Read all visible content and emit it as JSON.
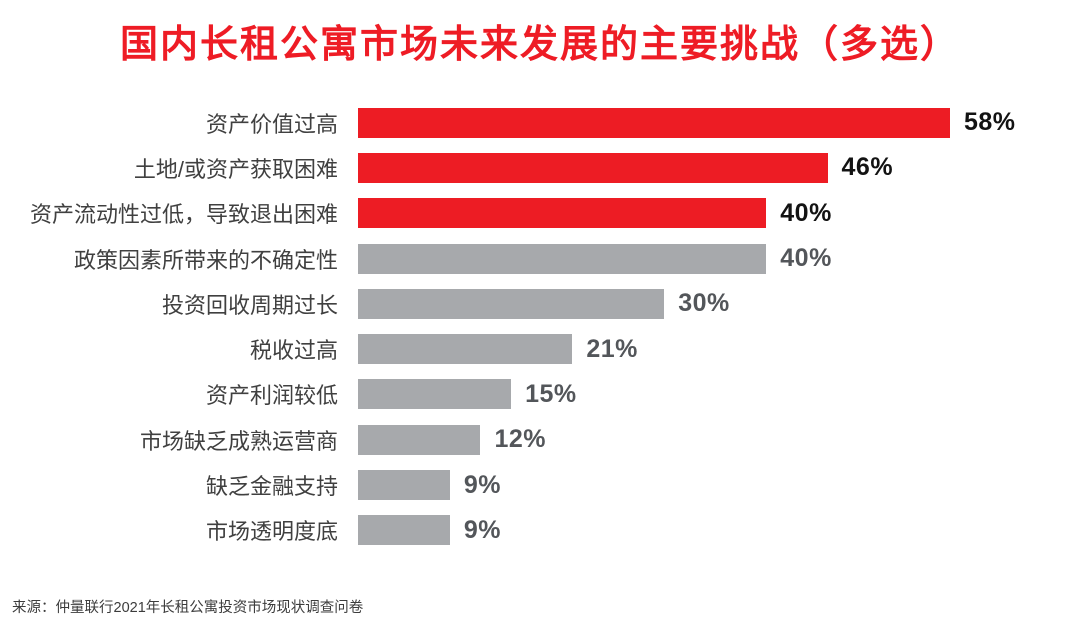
{
  "colors": {
    "title_red": "#ee1c25",
    "bar_red": "#ed1c24",
    "bar_gray": "#a7a9ac",
    "value_black": "#131313",
    "value_gray": "#53565a",
    "category_text": "#404040",
    "source_text": "#3c3c3c",
    "background": "#ffffff"
  },
  "chart_data": {
    "type": "bar",
    "orientation": "horizontal",
    "title": "国内长租公寓市场未来发展的主要挑战（多选）",
    "source": "来源：仲量联行2021年长租公寓投资市场现状调查问卷",
    "categories": [
      "资产价值过高",
      "土地/或资产获取困难",
      "资产流动性过低，导致退出困难",
      "政策因素所带来的不确定性",
      "投资回收周期过长",
      "税收过高",
      "资产利润较低",
      "市场缺乏成熟运营商",
      "缺乏金融支持",
      "市场透明度底"
    ],
    "values": [
      58,
      46,
      40,
      40,
      30,
      21,
      15,
      12,
      9,
      9
    ],
    "value_labels": [
      "58%",
      "46%",
      "40%",
      "40%",
      "30%",
      "21%",
      "15%",
      "12%",
      "9%",
      "9%"
    ],
    "bar_colors": [
      "#ed1c24",
      "#ed1c24",
      "#ed1c24",
      "#a7a9ac",
      "#a7a9ac",
      "#a7a9ac",
      "#a7a9ac",
      "#a7a9ac",
      "#a7a9ac",
      "#a7a9ac"
    ],
    "value_label_colors": [
      "#131313",
      "#131313",
      "#131313",
      "#53565a",
      "#53565a",
      "#53565a",
      "#53565a",
      "#53565a",
      "#53565a",
      "#53565a"
    ],
    "xlim": [
      0,
      65
    ],
    "grid": false,
    "legend": false,
    "axis_ticks_visible": false,
    "value_suffix": "%"
  }
}
